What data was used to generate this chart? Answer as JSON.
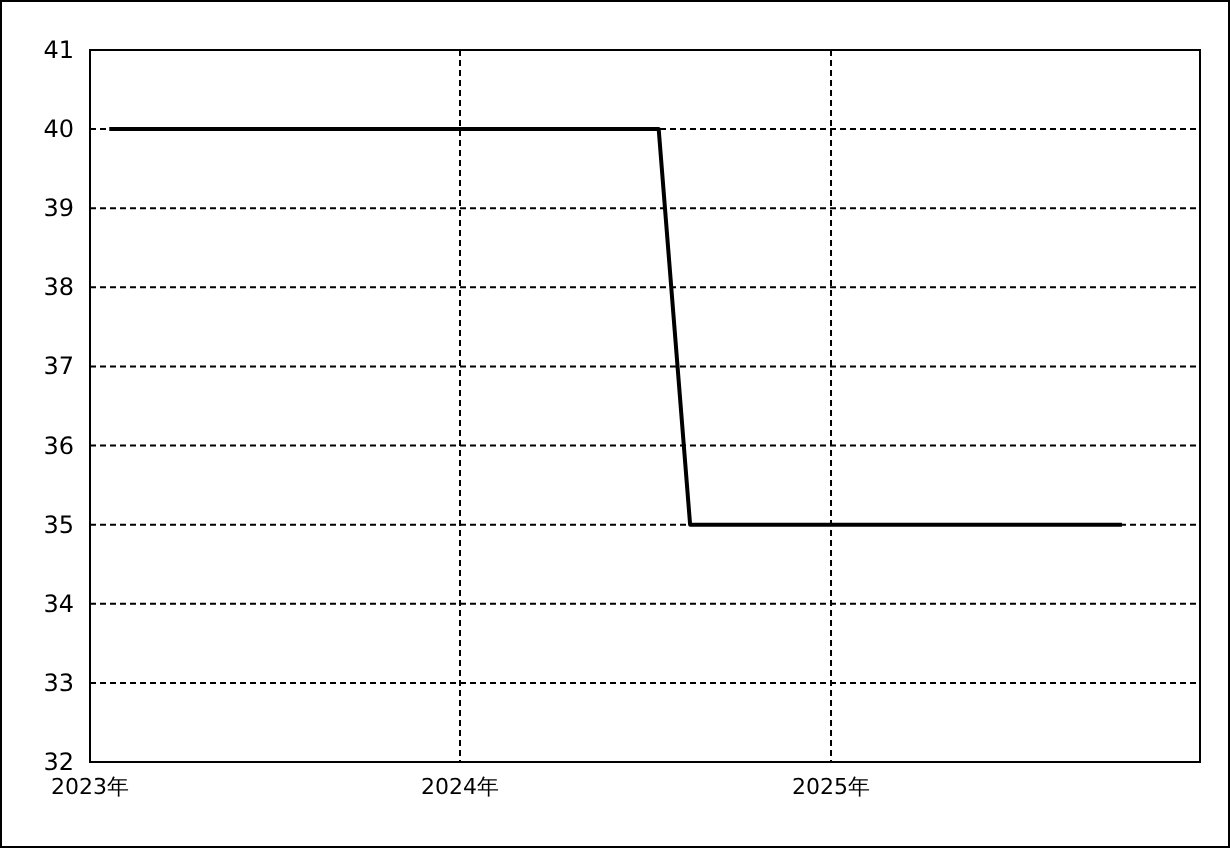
{
  "chart_data": {
    "type": "line",
    "x": [
      "2023-01-20",
      "2024-07-15",
      "2024-08-15",
      "2025-10-15"
    ],
    "series": [
      {
        "color": "#000000",
        "values": [
          40,
          40,
          35,
          35
        ]
      }
    ],
    "xlim": [
      "2023-01-01",
      "2025-12-31"
    ],
    "xticks": [
      {
        "value": "2023-01-01",
        "label": "2023年"
      },
      {
        "value": "2024-01-01",
        "label": "2024年"
      },
      {
        "value": "2025-01-01",
        "label": "2025年"
      }
    ],
    "ylim": [
      32,
      41
    ],
    "yticks": [
      32,
      33,
      34,
      35,
      36,
      37,
      38,
      39,
      40,
      41
    ],
    "grid": true,
    "line_style": "solid"
  }
}
